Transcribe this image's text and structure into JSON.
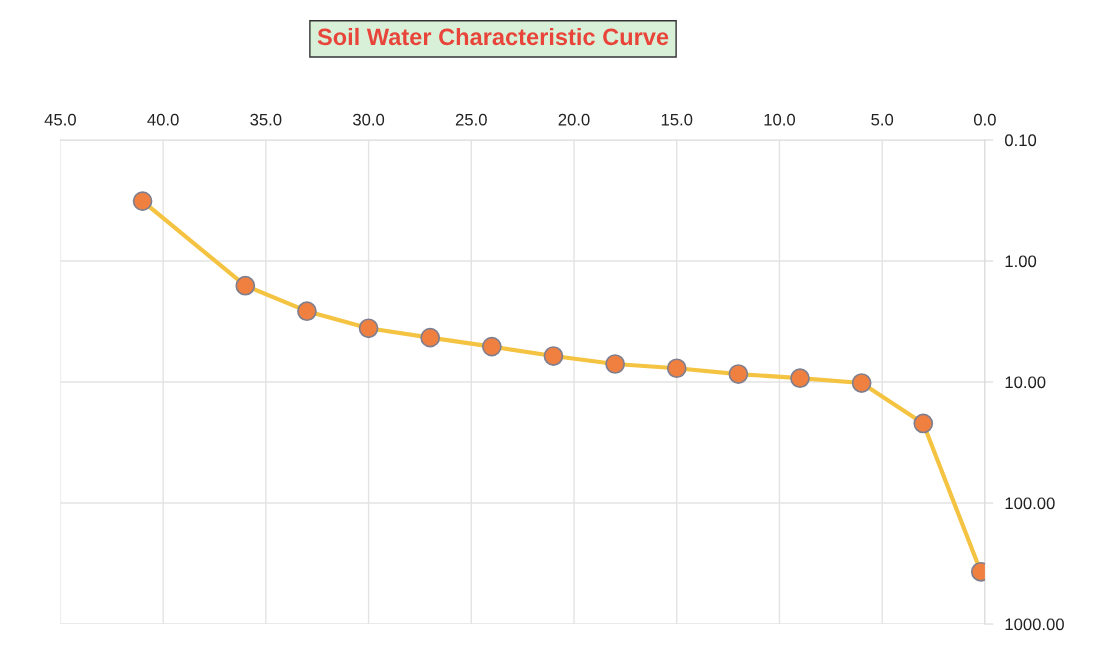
{
  "chart_data": {
    "type": "line",
    "title": "Soil Water Characteristic Curve",
    "x": [
      41,
      36,
      33,
      30,
      27,
      24,
      21,
      18,
      15,
      12,
      9,
      6,
      3,
      0.2
    ],
    "series": [
      {
        "color": "#f08040",
        "values": [
          0.32,
          1.6,
          2.6,
          3.6,
          4.3,
          5.1,
          6.1,
          7.1,
          7.7,
          8.6,
          9.3,
          10.2,
          22,
          370
        ]
      }
    ],
    "xlim": [
      45,
      0
    ],
    "xticks": [
      {
        "value": 45,
        "label": "45.0"
      },
      {
        "value": 40,
        "label": "40.0"
      },
      {
        "value": 35,
        "label": "35.0"
      },
      {
        "value": 30,
        "label": "30.0"
      },
      {
        "value": 25,
        "label": "25.0"
      },
      {
        "value": 20,
        "label": "20.0"
      },
      {
        "value": 15,
        "label": "15.0"
      },
      {
        "value": 10,
        "label": "10.0"
      },
      {
        "value": 5,
        "label": "5.0"
      },
      {
        "value": 0,
        "label": "0.0"
      }
    ],
    "ylim": [
      1000,
      0.1
    ],
    "yticks": [
      {
        "value": 0.1,
        "label": "0.10"
      },
      {
        "value": 1,
        "label": "1.00"
      },
      {
        "value": 10,
        "label": "10.00"
      },
      {
        "value": 100,
        "label": "100.00"
      },
      {
        "value": 1000,
        "label": "1000.00"
      }
    ],
    "log": true,
    "grid": true,
    "marker": "circle",
    "line_style": "solid"
  }
}
